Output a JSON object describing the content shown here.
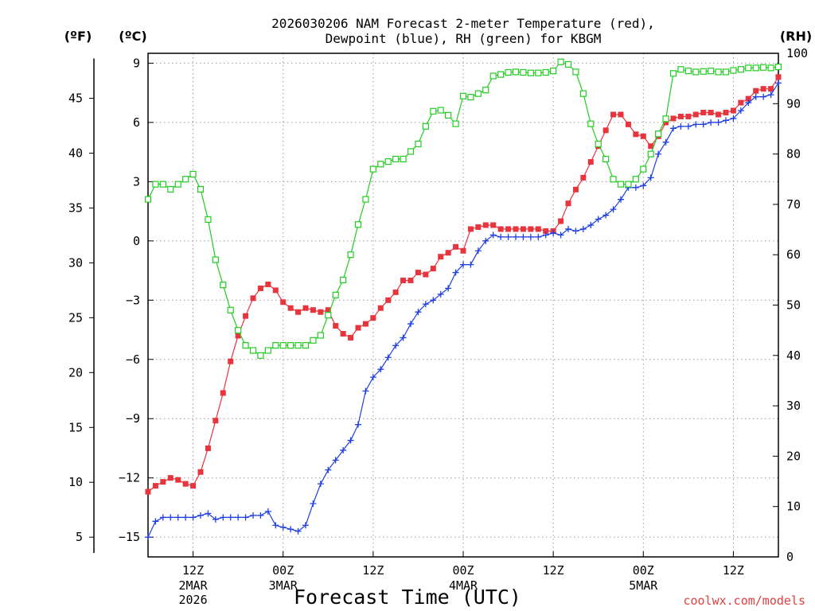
{
  "title": {
    "line1": "2026030206 NAM Forecast 2-meter Temperature (red),",
    "line2": "Dewpoint (blue), RH (green) for KBGM"
  },
  "units": {
    "fahrenheit": "(ºF)",
    "celsius": "(ºC)",
    "rh": "(RH)"
  },
  "xlabel": "Forecast Time (UTC)",
  "credit": "coolwx.com/models",
  "colors": {
    "temperature": "#e8343c",
    "dewpoint": "#1f3fe6",
    "rh": "#22cc22",
    "credit": "#e04040",
    "grid": "#9a9a9a"
  },
  "chart_data": {
    "type": "line",
    "title": "2026030206 NAM Forecast 2-meter Temperature (red), Dewpoint (blue), RH (green) for KBGM",
    "xlabel": "Forecast Time (UTC)",
    "x_unit": "forecast hour from 2026-03-02 06Z",
    "xlim": [
      0,
      84
    ],
    "x_ticks": [
      {
        "x": 6,
        "label": "12Z",
        "date": "2MAR",
        "year": "2026"
      },
      {
        "x": 18,
        "label": "00Z",
        "date": "3MAR",
        "year": ""
      },
      {
        "x": 30,
        "label": "12Z",
        "date": "",
        "year": ""
      },
      {
        "x": 42,
        "label": "00Z",
        "date": "4MAR",
        "year": ""
      },
      {
        "x": 54,
        "label": "12Z",
        "date": "",
        "year": ""
      },
      {
        "x": 66,
        "label": "00Z",
        "date": "5MAR",
        "year": ""
      },
      {
        "x": 78,
        "label": "12Z",
        "date": "",
        "year": ""
      }
    ],
    "y_celsius": {
      "label": "(ºC)",
      "ylim": [
        -16,
        9.5
      ],
      "ticks": [
        -15,
        -12,
        -9,
        -6,
        -3,
        0,
        3,
        6,
        9
      ]
    },
    "y_fahrenheit": {
      "label": "(ºF)",
      "ticks": [
        5,
        10,
        15,
        20,
        25,
        30,
        35,
        40,
        45
      ]
    },
    "y_rh": {
      "label": "(RH)",
      "ylim": [
        0,
        100
      ],
      "ticks": [
        0,
        10,
        20,
        30,
        40,
        50,
        60,
        70,
        80,
        90,
        100
      ]
    },
    "grid": true,
    "series": [
      {
        "key": "temperature",
        "axis": "celsius",
        "marker": "filled-square",
        "values": [
          -12.7,
          -12.4,
          -12.2,
          -12.0,
          -12.1,
          -12.3,
          -12.4,
          -11.7,
          -10.5,
          -9.1,
          -7.7,
          -6.1,
          -4.8,
          -3.8,
          -2.9,
          -2.4,
          -2.2,
          -2.5,
          -3.1,
          -3.4,
          -3.6,
          -3.4,
          -3.5,
          -3.6,
          -3.5,
          -4.3,
          -4.7,
          -4.9,
          -4.4,
          -4.2,
          -3.9,
          -3.4,
          -3.0,
          -2.6,
          -2.0,
          -2.0,
          -1.6,
          -1.7,
          -1.4,
          -0.8,
          -0.6,
          -0.3,
          -0.5,
          0.6,
          0.7,
          0.8,
          0.8,
          0.6,
          0.6,
          0.6,
          0.6,
          0.6,
          0.6,
          0.5,
          0.5,
          1.0,
          1.9,
          2.6,
          3.2,
          4.0,
          4.8,
          5.6,
          6.4,
          6.4,
          5.9,
          5.4,
          5.3,
          4.8,
          5.3,
          6.0,
          6.2,
          6.3,
          6.3,
          6.4,
          6.5,
          6.5,
          6.4,
          6.5,
          6.6,
          7.0,
          7.2,
          7.6,
          7.7,
          7.7,
          8.3
        ]
      },
      {
        "key": "dewpoint",
        "axis": "celsius",
        "marker": "plus",
        "values": [
          -15.0,
          -14.2,
          -14.0,
          -14.0,
          -14.0,
          -14.0,
          -14.0,
          -13.9,
          -13.8,
          -14.1,
          -14.0,
          -14.0,
          -14.0,
          -14.0,
          -13.9,
          -13.9,
          -13.7,
          -14.4,
          -14.5,
          -14.6,
          -14.7,
          -14.4,
          -13.3,
          -12.3,
          -11.6,
          -11.1,
          -10.6,
          -10.1,
          -9.3,
          -7.6,
          -6.9,
          -6.5,
          -5.9,
          -5.3,
          -4.9,
          -4.2,
          -3.6,
          -3.2,
          -3.0,
          -2.7,
          -2.4,
          -1.6,
          -1.2,
          -1.2,
          -0.5,
          0.0,
          0.3,
          0.2,
          0.2,
          0.2,
          0.2,
          0.2,
          0.2,
          0.3,
          0.4,
          0.3,
          0.6,
          0.5,
          0.6,
          0.8,
          1.1,
          1.3,
          1.6,
          2.1,
          2.7,
          2.7,
          2.8,
          3.2,
          4.4,
          5.0,
          5.7,
          5.8,
          5.8,
          5.9,
          5.9,
          6.0,
          6.0,
          6.1,
          6.2,
          6.6,
          7.0,
          7.3,
          7.3,
          7.4,
          8.0
        ]
      },
      {
        "key": "rh",
        "axis": "rh",
        "marker": "open-square",
        "values": [
          71,
          74,
          74,
          73,
          74,
          75,
          76,
          73,
          67,
          59,
          54,
          49,
          45,
          42,
          41,
          40,
          41,
          42,
          42,
          42,
          42,
          42,
          43,
          44,
          48,
          52,
          55,
          60,
          66,
          71,
          77,
          78,
          78.5,
          79,
          79,
          80.5,
          82,
          85.5,
          88.5,
          88.7,
          87.7,
          86,
          91.5,
          91.3,
          92,
          92.7,
          95.5,
          95.8,
          96.2,
          96.3,
          96.2,
          96.1,
          96.1,
          96.2,
          96.5,
          98.3,
          97.8,
          96.3,
          92,
          86,
          82,
          79,
          75,
          74,
          74,
          75,
          77,
          80,
          84,
          87,
          96,
          96.8,
          96.5,
          96.3,
          96.4,
          96.5,
          96.3,
          96.3,
          96.6,
          96.8,
          97.1,
          97.1,
          97.2,
          97.1,
          97.3
        ]
      }
    ]
  }
}
